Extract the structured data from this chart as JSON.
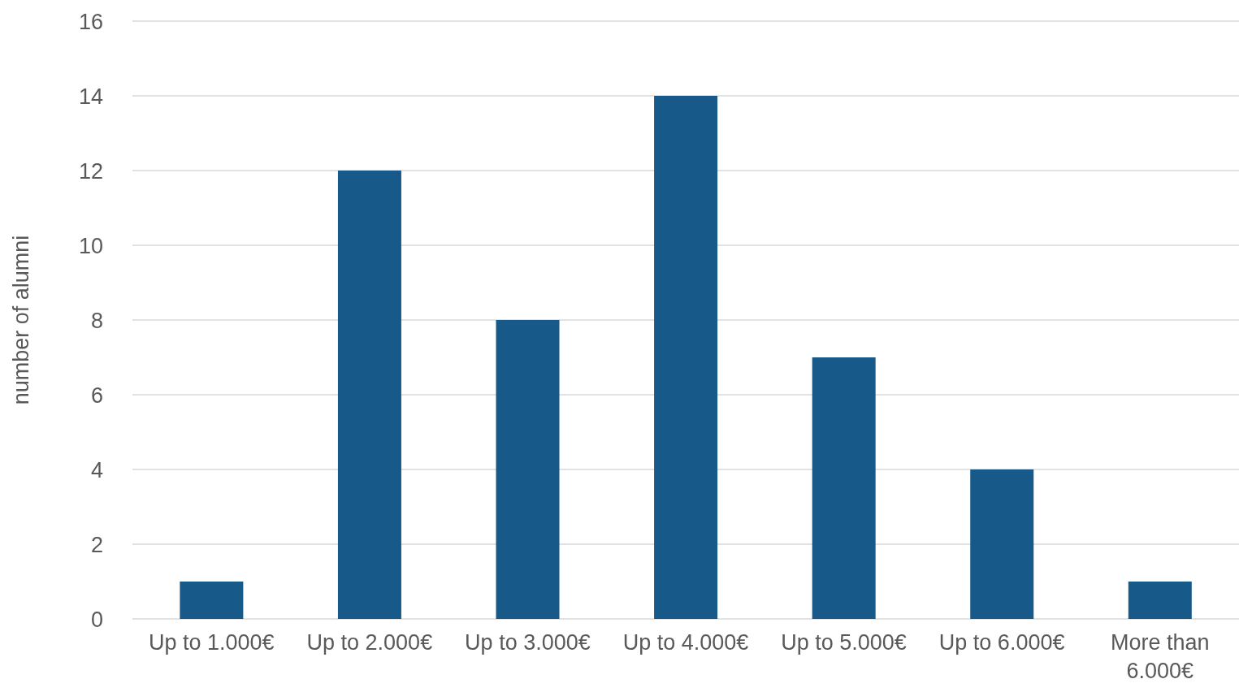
{
  "chart_data": {
    "type": "bar",
    "ylabel": "number of alumni",
    "categories": [
      "Up to 1.000€",
      "Up to 2.000€",
      "Up to 3.000€",
      "Up to 4.000€",
      "Up to 5.000€",
      "Up to 6.000€",
      "More than 6.000€"
    ],
    "values": [
      1,
      12,
      8,
      14,
      7,
      4,
      1
    ],
    "color": "#175a8a",
    "ylim": [
      0,
      16
    ],
    "yticks": [
      0,
      2,
      4,
      6,
      8,
      10,
      12,
      14,
      16
    ],
    "grid": "y",
    "legend": false
  }
}
